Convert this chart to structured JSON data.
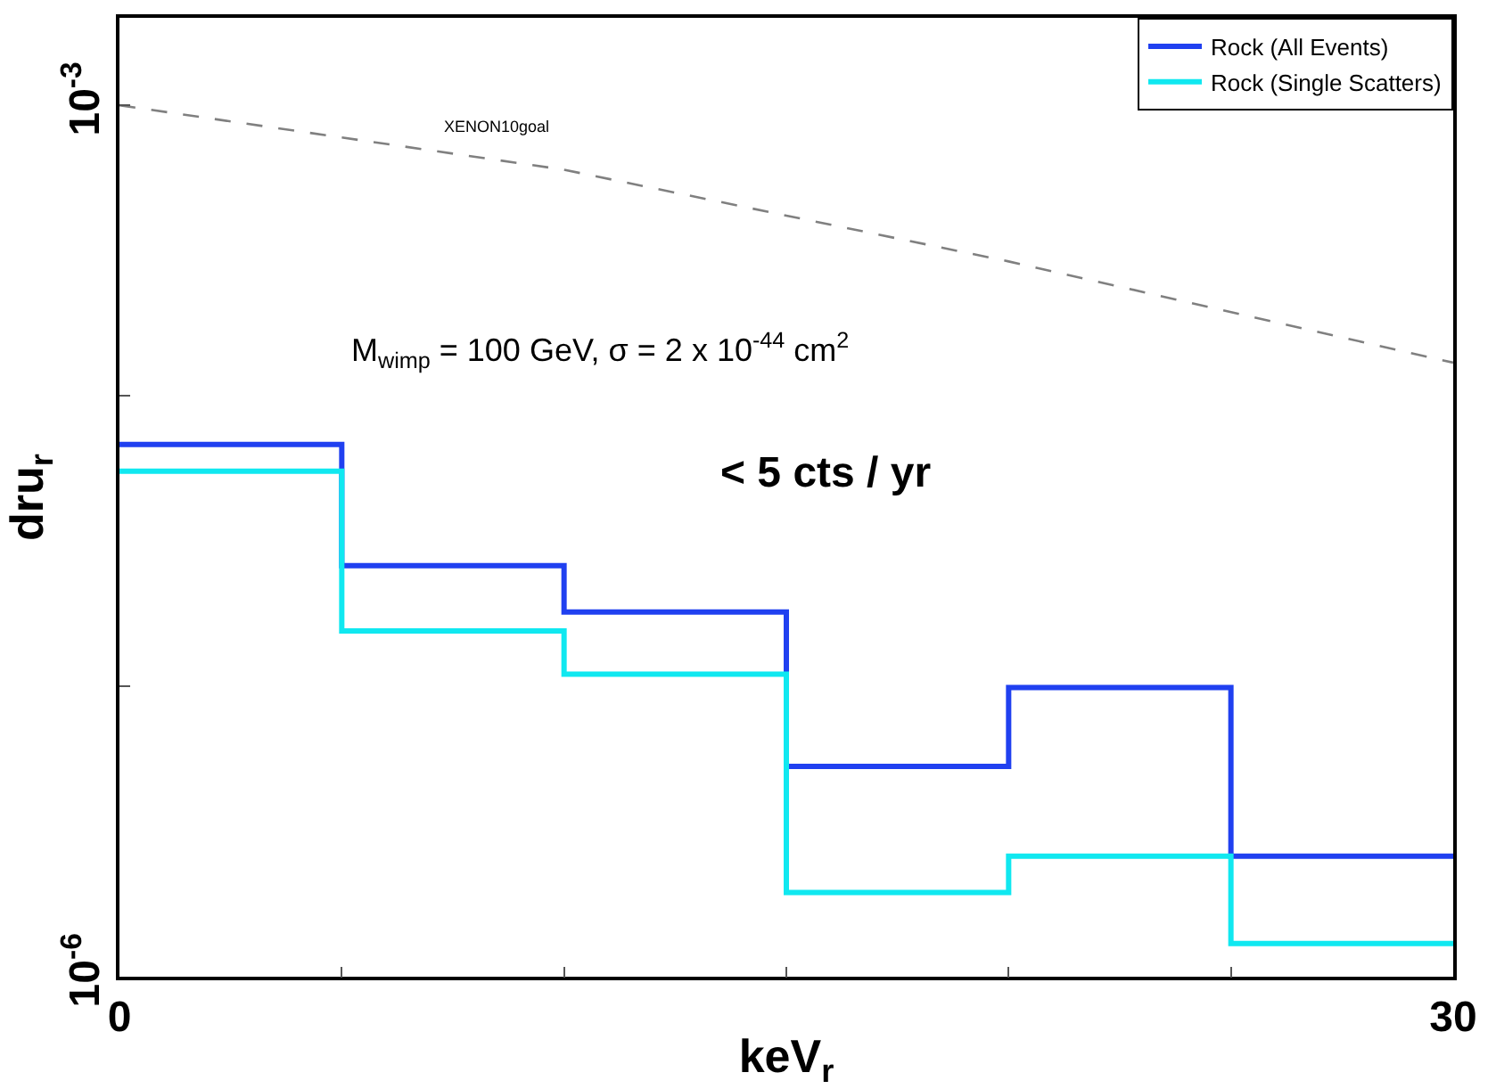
{
  "chart_data": {
    "type": "histogram",
    "xlabel": "keV$_{r}$",
    "ylabel": "dru$_{r}$",
    "bins": [
      0,
      5,
      10,
      15,
      20,
      25,
      30
    ],
    "series": [
      {
        "name": "Rock (All Events)",
        "color": "#2040f0",
        "values": [
          6.8e-05,
          2.6e-05,
          1.8e-05,
          5.3e-06,
          9.9e-06,
          2.6e-06
        ]
      },
      {
        "name": "Rock (Single Scatters)",
        "color": "#10e8f0",
        "values": [
          5.5e-05,
          1.55e-05,
          1.1e-05,
          1.95e-06,
          2.6e-06,
          1.3e-06
        ]
      },
      {
        "type": "line",
        "color": "#808080",
        "line_style": "dashed",
        "x": [
          0,
          10,
          20,
          30
        ],
        "values": [
          0.001,
          0.0006,
          0.00029,
          0.00013
        ]
      }
    ],
    "log": "y",
    "legend": "top right",
    "xlim": [
      0,
      30
    ],
    "xticks": [
      0,
      {
        "value": 5,
        "label": null
      },
      {
        "value": 10,
        "label": null
      },
      {
        "value": 15,
        "label": null
      },
      {
        "value": 20,
        "label": null
      },
      {
        "value": 25,
        "label": null
      },
      30
    ],
    "ylim": [
      1e-06,
      0.002
    ],
    "yticks": [
      {
        "value": 1e-06,
        "label": "10$^{-6}$"
      },
      {
        "value": 1e-05,
        "label": null
      },
      {
        "value": 0.0001,
        "label": null
      },
      {
        "value": 0.001,
        "label": "10$^{-3}$"
      }
    ],
    "annotations": [
      "XENON10goal",
      "M$_{wimp}$ = 100 GeV, σ = 2 x 10$^{-44}$ cm$^{2}$",
      "< 5 cts / yr"
    ]
  }
}
